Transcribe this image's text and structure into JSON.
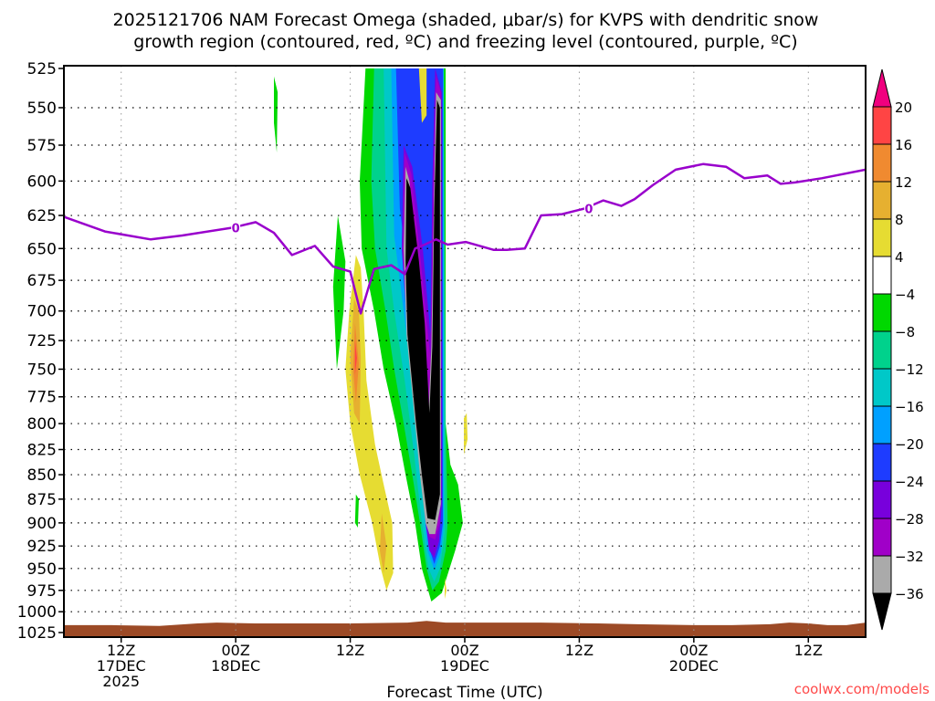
{
  "chart_data": {
    "type": "heatmap",
    "title_lines": [
      "2025121706 NAM Forecast Omega (shaded, μbar/s) for KVPS with dendritic snow",
      "growth region (contoured, red, ºC) and freezing level (contoured, purple, ºC)"
    ],
    "xlabel": "Forecast Time (UTC)",
    "credit": "coolwx.com/models",
    "x_range_hours": [
      0,
      84
    ],
    "y_range_hpa": [
      525,
      1025
    ],
    "y_scale": "log",
    "grid": true,
    "y_ticks": [
      525,
      550,
      575,
      600,
      625,
      650,
      675,
      700,
      725,
      750,
      775,
      800,
      825,
      850,
      875,
      900,
      925,
      950,
      975,
      1000,
      1025
    ],
    "x_ticks": [
      {
        "hour": 6,
        "lines": [
          "12Z",
          "17DEC",
          "2025"
        ]
      },
      {
        "hour": 18,
        "lines": [
          "00Z",
          "18DEC"
        ]
      },
      {
        "hour": 30,
        "lines": [
          "12Z"
        ]
      },
      {
        "hour": 42,
        "lines": [
          "00Z",
          "19DEC"
        ]
      },
      {
        "hour": 54,
        "lines": [
          "12Z"
        ]
      },
      {
        "hour": 66,
        "lines": [
          "00Z",
          "20DEC"
        ]
      },
      {
        "hour": 78,
        "lines": [
          "12Z"
        ]
      }
    ],
    "colorbar": {
      "labels": [
        "20",
        "16",
        "12",
        "8",
        "4",
        "−4",
        "−8",
        "−12",
        "−16",
        "−20",
        "−24",
        "−28",
        "−32",
        "−36"
      ],
      "colors": [
        "#ff4444",
        "#f08a30",
        "#e6b030",
        "#e6dc32",
        "#ffffff",
        "#00d800",
        "#00d28c",
        "#00c8c8",
        "#00a0ff",
        "#1e3cff",
        "#7800dc",
        "#a000c8",
        "#aaaaaa"
      ],
      "over_color": "#f0007f",
      "under_color": "#000000"
    },
    "shaded_regions": [
      {
        "level": -6,
        "color": "#00d800",
        "points": [
          [
            31.6,
            525
          ],
          [
            31.0,
            600
          ],
          [
            31.2,
            650
          ],
          [
            32.5,
            700
          ],
          [
            33.5,
            750
          ],
          [
            34.8,
            800
          ],
          [
            35.8,
            850
          ],
          [
            36.8,
            900
          ],
          [
            37.5,
            950
          ],
          [
            38.5,
            988
          ],
          [
            39.6,
            978
          ],
          [
            41.0,
            930
          ],
          [
            41.8,
            900
          ],
          [
            41.3,
            860
          ],
          [
            40.5,
            840
          ],
          [
            40.0,
            800
          ],
          [
            40.0,
            700
          ],
          [
            40.0,
            525
          ]
        ]
      },
      {
        "level": -6,
        "color": "#00d800",
        "points": [
          [
            28.7,
            625
          ],
          [
            28.2,
            680
          ],
          [
            28.6,
            750
          ],
          [
            29.3,
            700
          ],
          [
            29.5,
            660
          ]
        ]
      },
      {
        "level": -6,
        "color": "#00d800",
        "points": [
          [
            22.0,
            530
          ],
          [
            22.0,
            560
          ],
          [
            22.3,
            580
          ],
          [
            22.4,
            540
          ]
        ]
      },
      {
        "level": -6,
        "color": "#00d800",
        "points": [
          [
            30.6,
            870
          ],
          [
            30.5,
            900
          ],
          [
            30.8,
            905
          ],
          [
            30.9,
            875
          ]
        ]
      },
      {
        "level": -10,
        "color": "#00d28c",
        "points": [
          [
            32.5,
            525
          ],
          [
            32.2,
            600
          ],
          [
            32.6,
            650
          ],
          [
            33.7,
            700
          ],
          [
            34.6,
            750
          ],
          [
            35.6,
            800
          ],
          [
            36.5,
            850
          ],
          [
            37.3,
            900
          ],
          [
            38.0,
            950
          ],
          [
            38.6,
            975
          ],
          [
            39.3,
            965
          ],
          [
            40.0,
            930
          ],
          [
            40.2,
            900
          ],
          [
            40.0,
            800
          ],
          [
            39.8,
            525
          ]
        ]
      },
      {
        "level": -14,
        "color": "#00c8c8",
        "points": [
          [
            33.5,
            525
          ],
          [
            33.8,
            650
          ],
          [
            34.6,
            700
          ],
          [
            35.7,
            760
          ],
          [
            36.7,
            830
          ],
          [
            37.5,
            900
          ],
          [
            38.2,
            950
          ],
          [
            38.8,
            965
          ],
          [
            39.4,
            950
          ],
          [
            39.9,
            910
          ],
          [
            39.8,
            525
          ]
        ]
      },
      {
        "level": -18,
        "color": "#00a0ff",
        "points": [
          [
            34.3,
            525
          ],
          [
            34.6,
            640
          ],
          [
            35.6,
            700
          ],
          [
            36.6,
            770
          ],
          [
            37.5,
            860
          ],
          [
            38.1,
            930
          ],
          [
            38.8,
            952
          ],
          [
            39.5,
            932
          ],
          [
            39.8,
            900
          ],
          [
            39.8,
            525
          ]
        ]
      },
      {
        "level": -22,
        "color": "#1e3cff",
        "points": [
          [
            34.8,
            525
          ],
          [
            35.2,
            620
          ],
          [
            36.4,
            690
          ],
          [
            37.0,
            740
          ],
          [
            37.7,
            860
          ],
          [
            38.2,
            925
          ],
          [
            38.8,
            945
          ],
          [
            39.4,
            925
          ],
          [
            39.7,
            900
          ],
          [
            39.7,
            525
          ]
        ]
      },
      {
        "level": -26,
        "color": "#7800dc",
        "points": [
          [
            35.6,
            575
          ],
          [
            35.4,
            650
          ],
          [
            36.0,
            720
          ],
          [
            37.0,
            800
          ],
          [
            37.9,
            900
          ],
          [
            38.3,
            930
          ],
          [
            38.8,
            938
          ],
          [
            39.3,
            920
          ],
          [
            39.6,
            880
          ],
          [
            39.6,
            540
          ],
          [
            38.9,
            525
          ],
          [
            38.6,
            600
          ],
          [
            38.4,
            720
          ],
          [
            37.6,
            650
          ],
          [
            36.5,
            590
          ]
        ]
      },
      {
        "level": -30,
        "color": "#a000c8",
        "points": [
          [
            35.7,
            580
          ],
          [
            35.5,
            650
          ],
          [
            36.0,
            720
          ],
          [
            36.9,
            800
          ],
          [
            37.7,
            880
          ],
          [
            38.3,
            915
          ],
          [
            38.9,
            918
          ],
          [
            39.4,
            900
          ],
          [
            39.5,
            540
          ],
          [
            39.0,
            530
          ],
          [
            38.7,
            600
          ],
          [
            38.4,
            740
          ],
          [
            37.4,
            660
          ],
          [
            36.4,
            595
          ]
        ]
      },
      {
        "level": -34,
        "color": "#aaaaaa",
        "points": [
          [
            35.8,
            590
          ],
          [
            35.6,
            650
          ],
          [
            35.9,
            720
          ],
          [
            36.8,
            800
          ],
          [
            37.3,
            850
          ],
          [
            37.9,
            900
          ],
          [
            38.3,
            912
          ],
          [
            38.9,
            912
          ],
          [
            39.5,
            880
          ],
          [
            39.5,
            545
          ],
          [
            39.0,
            540
          ],
          [
            38.8,
            600
          ],
          [
            38.5,
            730
          ],
          [
            38.2,
            790
          ],
          [
            37.6,
            700
          ],
          [
            36.8,
            640
          ],
          [
            36.2,
            600
          ]
        ]
      },
      {
        "level": -38,
        "color": "#000000",
        "points": [
          [
            35.9,
            598
          ],
          [
            35.8,
            660
          ],
          [
            36.0,
            720
          ],
          [
            36.9,
            800
          ],
          [
            37.5,
            850
          ],
          [
            38.1,
            895
          ],
          [
            38.9,
            897
          ],
          [
            39.4,
            870
          ],
          [
            39.4,
            550
          ],
          [
            39.1,
            545
          ],
          [
            38.8,
            620
          ],
          [
            38.6,
            730
          ],
          [
            38.3,
            790
          ],
          [
            37.8,
            710
          ],
          [
            37.2,
            660
          ],
          [
            36.3,
            605
          ]
        ]
      },
      {
        "level": 6,
        "color": "#e6dc32",
        "points": [
          [
            30.6,
            655
          ],
          [
            29.9,
            700
          ],
          [
            29.5,
            750
          ],
          [
            30.0,
            800
          ],
          [
            31.0,
            850
          ],
          [
            32.3,
            900
          ],
          [
            33.2,
            950
          ],
          [
            33.8,
            975
          ],
          [
            34.5,
            955
          ],
          [
            34.4,
            900
          ],
          [
            33.5,
            860
          ],
          [
            32.6,
            820
          ],
          [
            31.7,
            760
          ],
          [
            31.4,
            700
          ],
          [
            31.1,
            665
          ]
        ]
      },
      {
        "level": 10,
        "color": "#e6b030",
        "points": [
          [
            30.4,
            690
          ],
          [
            30.0,
            740
          ],
          [
            30.4,
            790
          ],
          [
            31.0,
            800
          ],
          [
            31.1,
            740
          ],
          [
            30.9,
            700
          ]
        ]
      },
      {
        "level": 10,
        "color": "#e6b030",
        "points": [
          [
            33.3,
            890
          ],
          [
            33.1,
            930
          ],
          [
            33.5,
            955
          ],
          [
            33.8,
            925
          ]
        ]
      },
      {
        "level": 14,
        "color": "#f08a30",
        "points": [
          [
            30.5,
            710
          ],
          [
            30.3,
            750
          ],
          [
            30.6,
            780
          ],
          [
            30.9,
            745
          ]
        ]
      },
      {
        "level": 18,
        "color": "#ff4444",
        "points": [
          [
            30.5,
            725
          ],
          [
            30.5,
            755
          ],
          [
            30.7,
            740
          ]
        ]
      },
      {
        "level": 6,
        "color": "#e6dc32",
        "points": [
          [
            37.2,
            525
          ],
          [
            38.0,
            525
          ],
          [
            38.0,
            555
          ],
          [
            37.5,
            560
          ]
        ]
      },
      {
        "level": 6,
        "color": "#e6dc32",
        "points": [
          [
            41.9,
            795
          ],
          [
            41.9,
            830
          ],
          [
            42.3,
            815
          ],
          [
            42.2,
            790
          ]
        ]
      },
      {
        "level": 6,
        "color": "#e6dc32",
        "points": [
          [
            39.9,
            960
          ],
          [
            39.9,
            985
          ],
          [
            40.1,
            975
          ]
        ]
      }
    ],
    "freezing_level": {
      "label": "0",
      "label_points": [
        [
          18.0,
          634
        ],
        [
          55.0,
          620
        ]
      ],
      "color": "#9900cc",
      "hours": [
        0,
        4.3,
        9.1,
        12.4,
        17.7,
        20.1,
        22,
        23.9,
        26.3,
        28.2,
        30,
        31.1,
        32.5,
        34.3,
        35.7,
        36.8,
        37.8,
        39,
        40.2,
        42.1,
        45,
        46.4,
        48.3,
        50,
        52.2,
        54.5,
        56.5,
        58.4,
        59.8,
        61.7,
        64.1,
        67,
        69.4,
        71.3,
        73.7,
        75.1,
        76.6,
        79.4,
        84
      ],
      "pressure": [
        626,
        637,
        643,
        640,
        634,
        630,
        638,
        655,
        648,
        664,
        668,
        702,
        666,
        663,
        670,
        650,
        647,
        643,
        647,
        645,
        651,
        651,
        650,
        625,
        624,
        620,
        614,
        618,
        613,
        603,
        592,
        588,
        590,
        598,
        596,
        602,
        601,
        598,
        592
      ]
    },
    "terrain": {
      "color": "#9c4a26",
      "hours": [
        0,
        5,
        10,
        14,
        16,
        20,
        24,
        30,
        36,
        38,
        40,
        44,
        50,
        56,
        60,
        66,
        70,
        74,
        76,
        78,
        80,
        82,
        84
      ],
      "pressure": [
        1016,
        1016,
        1017,
        1014,
        1013,
        1014,
        1014,
        1014,
        1013,
        1011,
        1013,
        1013,
        1013,
        1014,
        1015,
        1016,
        1016,
        1015,
        1013,
        1014,
        1016,
        1016,
        1013
      ]
    }
  }
}
